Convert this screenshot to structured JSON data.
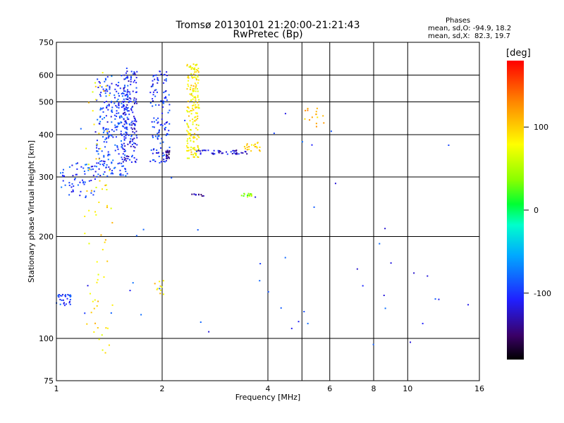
{
  "header": {
    "title": "Tromsø 20130101 21:20:00-21:21:43",
    "subtitle": "RwPretec (Bp)"
  },
  "phase_info": {
    "title": "Phases",
    "line1": "mean, sd,O: -94.9, 18.2",
    "line2": "mean, sd,X:  82.3, 19.7"
  },
  "colorbar": {
    "label": "[deg]",
    "ticks": [
      100,
      0,
      -100
    ],
    "range": [
      -180,
      180
    ]
  },
  "colors": {
    "grid": "#000000",
    "background": "#ffffff"
  },
  "chart_data": {
    "type": "scatter",
    "title": "Tromsø 20130101 21:20:00-21:21:43",
    "subtitle": "RwPretec (Bp)",
    "xlabel": "Frequency [MHz]",
    "ylabel": "Stationary phase Virtual Height [km]",
    "xscale": "log",
    "yscale": "log",
    "xlim": [
      1,
      16
    ],
    "ylim": [
      75,
      750
    ],
    "x_ticks": [
      1,
      2,
      4,
      6,
      8,
      10,
      16
    ],
    "x_gridlines": [
      2,
      4,
      5,
      6,
      8,
      10
    ],
    "y_ticks": [
      75,
      100,
      200,
      300,
      400,
      500,
      600,
      750
    ],
    "y_gridlines": [
      100,
      200,
      300,
      400,
      500,
      600
    ],
    "grid": true,
    "color_variable": "phase [deg]",
    "clusters": [
      {
        "x": [
          1.3,
          1.6
        ],
        "y": [
          300,
          600
        ],
        "phase": -95,
        "n": 260
      },
      {
        "x": [
          1.55,
          1.7
        ],
        "y": [
          330,
          630
        ],
        "phase": -110,
        "n": 160
      },
      {
        "x": [
          1.85,
          2.1
        ],
        "y": [
          330,
          620
        ],
        "phase": -100,
        "n": 120
      },
      {
        "x": [
          2.05,
          2.1
        ],
        "y": [
          340,
          360
        ],
        "phase": -140,
        "n": 20
      },
      {
        "x": [
          2.35,
          2.55
        ],
        "y": [
          340,
          650
        ],
        "phase": 85,
        "n": 180
      },
      {
        "x": [
          2.5,
          3.5
        ],
        "y": [
          350,
          360
        ],
        "phase": -120,
        "n": 45
      },
      {
        "x": [
          3.4,
          3.8
        ],
        "y": [
          355,
          380
        ],
        "phase": 100,
        "n": 20
      },
      {
        "x": [
          3.35,
          3.6
        ],
        "y": [
          262,
          268
        ],
        "phase": 35,
        "n": 15
      },
      {
        "x": [
          2.4,
          2.65
        ],
        "y": [
          263,
          267
        ],
        "phase": -130,
        "n": 10
      },
      {
        "x": [
          1.02,
          1.3
        ],
        "y": [
          260,
          330
        ],
        "phase": -95,
        "n": 60
      },
      {
        "x": [
          1.0,
          1.1
        ],
        "y": [
          125,
          135
        ],
        "phase": -95,
        "n": 30
      },
      {
        "x": [
          5.0,
          5.8
        ],
        "y": [
          420,
          480
        ],
        "phase": 110,
        "n": 15
      },
      {
        "x": [
          1.2,
          1.45
        ],
        "y": [
          90,
          620
        ],
        "phase": 90,
        "n": 70
      },
      {
        "x": [
          1.1,
          15.0
        ],
        "y": [
          90,
          480
        ],
        "phase": -100,
        "n": 55
      },
      {
        "x": [
          1.9,
          2.1
        ],
        "y": [
          135,
          150
        ],
        "phase": 90,
        "n": 10
      }
    ]
  }
}
